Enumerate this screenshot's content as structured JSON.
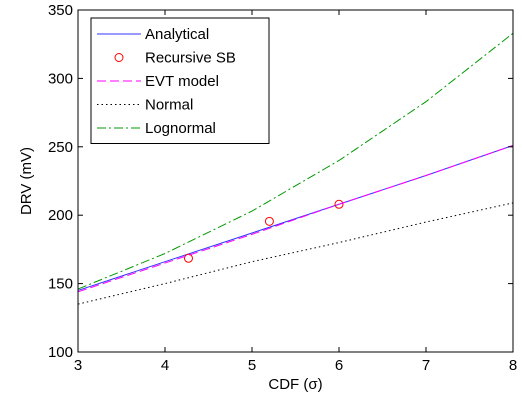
{
  "chart_data": {
    "type": "line",
    "xlabel": "CDF (σ)",
    "ylabel": "DRV (mV)",
    "xlim": [
      3,
      8
    ],
    "ylim": [
      100,
      350
    ],
    "xticks": [
      3,
      4,
      5,
      6,
      7,
      8
    ],
    "yticks": [
      100,
      150,
      200,
      250,
      300,
      350
    ],
    "grid": false,
    "legend_position": "top-left",
    "series": [
      {
        "name": "Analytical",
        "style": "solid",
        "color": "#3333ff",
        "x": [
          3,
          4,
          5,
          6,
          7,
          8
        ],
        "y": [
          145,
          166,
          187,
          208,
          229,
          251
        ]
      },
      {
        "name": "Recursive SB",
        "style": "markers",
        "marker": "circle",
        "color": "#ff0000",
        "x": [
          4.27,
          5.2,
          6.0
        ],
        "y": [
          168.5,
          195.5,
          208
        ]
      },
      {
        "name": "EVT model",
        "style": "dashed",
        "color": "#ff00ff",
        "x": [
          3,
          4,
          5,
          6,
          7,
          8
        ],
        "y": [
          144,
          165,
          186,
          208,
          229,
          251
        ]
      },
      {
        "name": "Normal",
        "style": "dotted",
        "color": "#000000",
        "x": [
          3,
          4,
          5,
          6,
          7,
          8
        ],
        "y": [
          135,
          150,
          166,
          180,
          195,
          209
        ]
      },
      {
        "name": "Lognormal",
        "style": "dashdot",
        "color": "#009900",
        "x": [
          3,
          4,
          5,
          6,
          7,
          8
        ],
        "y": [
          146,
          172,
          203,
          240,
          283,
          333
        ]
      }
    ]
  }
}
